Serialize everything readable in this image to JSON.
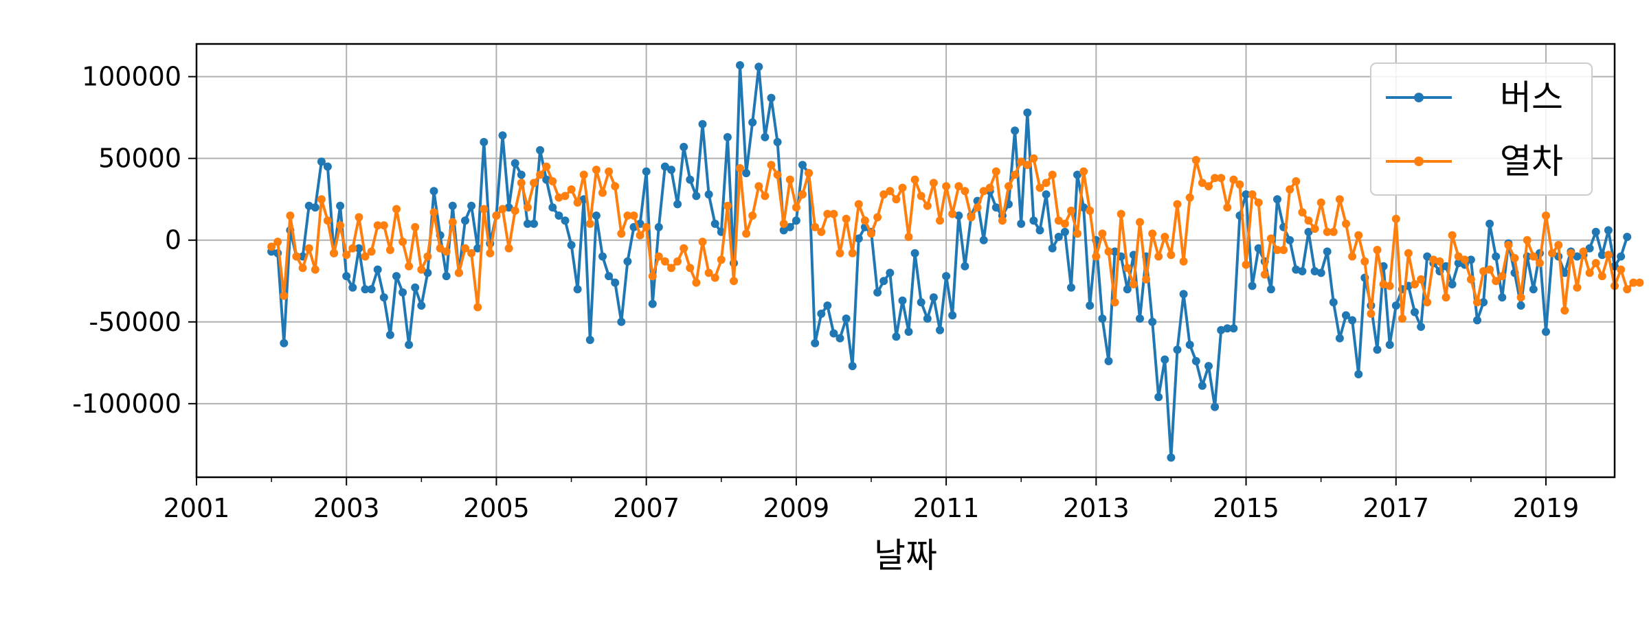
{
  "chart_data": {
    "type": "line",
    "title": "",
    "xlabel": "날짜",
    "ylabel": "",
    "xlim": [
      "2001-01-01",
      "2019-12-01"
    ],
    "ylim": [
      -145000,
      120000
    ],
    "grid": true,
    "legend_position": "top-right",
    "x_ticks": [
      "2001",
      "2003",
      "2005",
      "2007",
      "2009",
      "2011",
      "2013",
      "2015",
      "2017",
      "2019"
    ],
    "y_ticks": [
      100000,
      50000,
      0,
      -50000,
      -100000
    ],
    "y_tick_labels": [
      "100000",
      "50000",
      "0",
      "-50000",
      "-100000"
    ],
    "start_month": "2002-01",
    "series": [
      {
        "name": "버스",
        "color": "#1f77b4",
        "values": [
          -7000,
          -8000,
          -63000,
          6000,
          -10000,
          -10000,
          21000,
          20000,
          48000,
          45000,
          -8000,
          21000,
          -22000,
          -29000,
          -5000,
          -30000,
          -30000,
          -18000,
          -35000,
          -58000,
          -22000,
          -32000,
          -64000,
          -29000,
          -40000,
          -20000,
          30000,
          3000,
          -22000,
          21000,
          -20000,
          12000,
          21000,
          -5000,
          60000,
          -2000,
          15000,
          64000,
          20000,
          47000,
          40000,
          10000,
          10000,
          55000,
          37000,
          20000,
          15000,
          12000,
          -3000,
          -30000,
          25000,
          -61000,
          15000,
          -10000,
          -22000,
          -26000,
          -50000,
          -13000,
          8000,
          10000,
          42000,
          -39000,
          8000,
          45000,
          43000,
          22000,
          57000,
          37000,
          27000,
          71000,
          28000,
          10000,
          5000,
          63000,
          -14000,
          107000,
          41000,
          72000,
          106000,
          63000,
          87000,
          60000,
          6000,
          8000,
          12000,
          46000,
          41000,
          -63000,
          -45000,
          -40000,
          -57000,
          -60000,
          -48000,
          -77000,
          1000,
          8000,
          5000,
          -32000,
          -25000,
          -20000,
          -59000,
          -37000,
          -56000,
          -8000,
          -38000,
          -48000,
          -35000,
          -55000,
          -22000,
          -46000,
          15000,
          -16000,
          15000,
          24000,
          0,
          30000,
          20000,
          15000,
          22000,
          67000,
          10000,
          78000,
          12000,
          6000,
          28000,
          -5000,
          2000,
          5000,
          -29000,
          40000,
          20000,
          -40000,
          0,
          -48000,
          -74000,
          -7000,
          -10000,
          -30000,
          -9000,
          -48000,
          -10000,
          -50000,
          -96000,
          -73000,
          -133000,
          -67000,
          -33000,
          -64000,
          -74000,
          -89000,
          -77000,
          -102000,
          -55000,
          -54000,
          -54000,
          15000,
          28000,
          -28000,
          -5000,
          -13000,
          -30000,
          25000,
          8000,
          0,
          -18000,
          -19000,
          5000,
          -19000,
          -20000,
          -7000,
          -38000,
          -60000,
          -46000,
          -49000,
          -82000,
          -23000,
          -40000,
          -67000,
          -16000,
          -64000,
          -40000,
          -30000,
          -28000,
          -44000,
          -53000,
          -10000,
          -14000,
          -19000,
          -16000,
          -27000,
          -14000,
          -15000,
          -12000,
          -49000,
          -38000,
          10000,
          -10000,
          -35000,
          -2000,
          -20000,
          -40000,
          -10000,
          -30000,
          -8000,
          -56000,
          -8000,
          -10000,
          -20000,
          -7000,
          -10000,
          -9000,
          -5000,
          5000,
          -9000,
          6000,
          -16000,
          -10000,
          2000
        ]
      },
      {
        "name": "열차",
        "color": "#ff7f0e",
        "values": [
          -4000,
          -1000,
          -34000,
          15000,
          -10000,
          -17000,
          -5000,
          -18000,
          25000,
          12000,
          -8000,
          9000,
          -9000,
          -5000,
          14000,
          -10000,
          -7000,
          9000,
          9000,
          -6000,
          19000,
          -1000,
          -16000,
          8000,
          -18000,
          -10000,
          17000,
          -5000,
          -7000,
          11000,
          -20000,
          -5000,
          -8000,
          -41000,
          19000,
          -8000,
          15000,
          19000,
          -5000,
          18000,
          35000,
          20000,
          35000,
          40000,
          45000,
          36000,
          26000,
          27000,
          31000,
          23000,
          40000,
          10000,
          43000,
          29000,
          42000,
          33000,
          4000,
          15000,
          15000,
          3000,
          8000,
          -22000,
          -10000,
          -13000,
          -17000,
          -13000,
          -5000,
          -17000,
          -26000,
          -1000,
          -20000,
          -23000,
          -12000,
          21000,
          -25000,
          44000,
          4000,
          15000,
          33000,
          27000,
          46000,
          40000,
          10000,
          37000,
          20000,
          28000,
          41000,
          8000,
          5000,
          16000,
          16000,
          -8000,
          13000,
          -8000,
          22000,
          12000,
          4000,
          14000,
          28000,
          30000,
          25000,
          32000,
          2000,
          37000,
          27000,
          21000,
          35000,
          12000,
          33000,
          16000,
          33000,
          30000,
          14000,
          20000,
          30000,
          32000,
          42000,
          12000,
          33000,
          40000,
          48000,
          46000,
          50000,
          32000,
          35000,
          40000,
          12000,
          10000,
          18000,
          4000,
          42000,
          18000,
          -10000,
          4000,
          -7000,
          -38000,
          16000,
          -17000,
          -27000,
          11000,
          -24000,
          4000,
          -10000,
          2000,
          -9000,
          22000,
          -13000,
          26000,
          49000,
          35000,
          33000,
          38000,
          38000,
          20000,
          37000,
          34000,
          -15000,
          28000,
          23000,
          -21000,
          1000,
          -6000,
          -6000,
          31000,
          36000,
          17000,
          12000,
          7000,
          23000,
          5000,
          5000,
          25000,
          10000,
          -10000,
          3000,
          -13000,
          -45000,
          -6000,
          -27000,
          -28000,
          13000,
          -48000,
          -8000,
          -27000,
          -24000,
          -38000,
          -12000,
          -13000,
          -35000,
          3000,
          -10000,
          -12000,
          -24000,
          -38000,
          -19000,
          -18000,
          -25000,
          -22000,
          -3000,
          -11000,
          -35000,
          0,
          -10000,
          -14000,
          15000,
          -8000,
          -3000,
          -43000,
          -8000,
          -29000,
          -7000,
          -20000,
          -14000,
          -22000,
          -9000,
          -28000,
          -18000,
          -30000,
          -26000,
          -26000
        ]
      }
    ]
  }
}
